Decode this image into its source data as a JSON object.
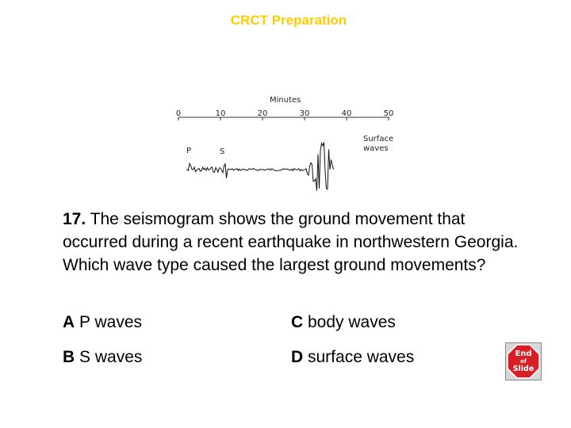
{
  "header": {
    "title": "CRCT Preparation"
  },
  "seismogram": {
    "axis_title": "Minutes",
    "ticks": [
      "0",
      "10",
      "20",
      "30",
      "40",
      "50"
    ],
    "labels": {
      "p": "P",
      "s": "S",
      "surface_line1": "Surface",
      "surface_line2": "waves"
    }
  },
  "question": {
    "number": "17.",
    "text": " The seismogram shows the ground movement that occurred during a recent earthquake in northwestern Georgia.  Which wave type caused the largest ground movements?"
  },
  "answers": [
    {
      "letter": "A",
      "text": " P waves"
    },
    {
      "letter": "B",
      "text": " S waves"
    },
    {
      "letter": "C",
      "text": " body waves"
    },
    {
      "letter": "D",
      "text": " surface waves"
    }
  ],
  "end_button": {
    "line1": "End",
    "line2": "of",
    "line3": "Slide",
    "color": "#d81f26"
  },
  "colors": {
    "title": "#ffcc00"
  }
}
